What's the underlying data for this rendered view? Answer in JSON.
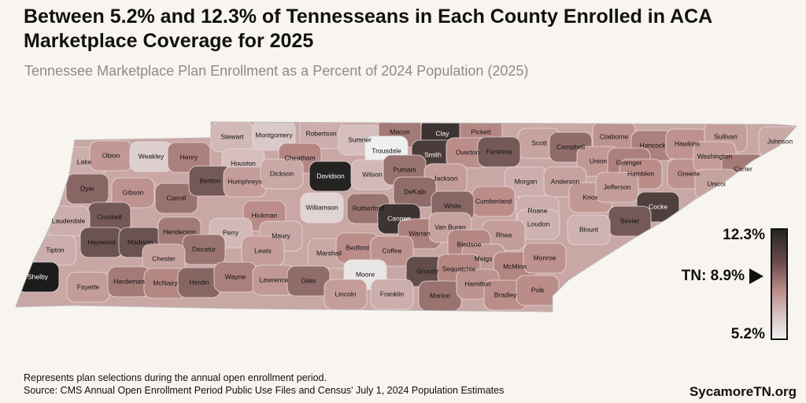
{
  "title": "Between 5.2% and 12.3% of Tennesseans in Each County Enrolled in ACA Marketplace Coverage for 2025",
  "subtitle": "Tennessee Marketplace Plan Enrollment as a Percent of 2024 Population (2025)",
  "legend": {
    "max_label": "12.3%",
    "min_label": "5.2%",
    "state_label": "TN: 8.9%",
    "min": 5.2,
    "max": 12.3,
    "state": 8.9,
    "colors": {
      "low": "#eef0f1",
      "mid": "#ba8a86",
      "high": "#1c1c1c"
    }
  },
  "counties": [
    {
      "name": "Stewart",
      "value": 7.2
    },
    {
      "name": "Montgomery",
      "value": 6.6
    },
    {
      "name": "Robertson",
      "value": 7.6
    },
    {
      "name": "Sumner",
      "value": 7.0
    },
    {
      "name": "Macon",
      "value": 9.4
    },
    {
      "name": "Clay",
      "value": 11.6
    },
    {
      "name": "Pickett",
      "value": 9.0
    },
    {
      "name": "Scott",
      "value": 8.0
    },
    {
      "name": "Campbell",
      "value": 9.8
    },
    {
      "name": "Claiborne",
      "value": 8.6
    },
    {
      "name": "Hancock",
      "value": 9.2
    },
    {
      "name": "Hawkins",
      "value": 8.6
    },
    {
      "name": "Sullivan",
      "value": 8.2
    },
    {
      "name": "Johnson",
      "value": 7.8
    },
    {
      "name": "Lake",
      "value": 7.6
    },
    {
      "name": "Obion",
      "value": 8.4
    },
    {
      "name": "Weakley",
      "value": 6.4
    },
    {
      "name": "Henry",
      "value": 9.2
    },
    {
      "name": "Houston",
      "value": 7.0
    },
    {
      "name": "Cheatham",
      "value": 9.0
    },
    {
      "name": "Davidson",
      "value": 12.1
    },
    {
      "name": "Trousdale",
      "value": 5.2
    },
    {
      "name": "Smith",
      "value": 11.3
    },
    {
      "name": "Overton",
      "value": 8.8
    },
    {
      "name": "Fentress",
      "value": 10.4
    },
    {
      "name": "Union",
      "value": 8.4
    },
    {
      "name": "Grainger",
      "value": 9.2
    },
    {
      "name": "Hamblen",
      "value": 8.8
    },
    {
      "name": "Greene",
      "value": 8.6
    },
    {
      "name": "Washington",
      "value": 8.2
    },
    {
      "name": "Carter",
      "value": 9.4
    },
    {
      "name": "Unicoi",
      "value": 8.0
    },
    {
      "name": "Dyer",
      "value": 10.0
    },
    {
      "name": "Gibson",
      "value": 8.6
    },
    {
      "name": "Carroll",
      "value": 9.6
    },
    {
      "name": "Benton",
      "value": 10.4
    },
    {
      "name": "Humphreys",
      "value": 8.2
    },
    {
      "name": "Dickson",
      "value": 7.8
    },
    {
      "name": "Wilson",
      "value": 7.2
    },
    {
      "name": "Putnam",
      "value": 9.6
    },
    {
      "name": "Jackson",
      "value": 8.2
    },
    {
      "name": "Morgan",
      "value": 7.6
    },
    {
      "name": "Anderson",
      "value": 8.0
    },
    {
      "name": "Knox",
      "value": 8.4
    },
    {
      "name": "Jefferson",
      "value": 8.2
    },
    {
      "name": "Cocke",
      "value": 11.2
    },
    {
      "name": "Crockett",
      "value": 10.4
    },
    {
      "name": "Williamson",
      "value": 6.2
    },
    {
      "name": "DeKalb",
      "value": 9.8
    },
    {
      "name": "Cumberland",
      "value": 8.8
    },
    {
      "name": "Roane",
      "value": 7.6
    },
    {
      "name": "Sevier",
      "value": 10.4
    },
    {
      "name": "Lauderdale",
      "value": 7.6
    },
    {
      "name": "Hickman",
      "value": 8.8
    },
    {
      "name": "Rutherford",
      "value": 9.6
    },
    {
      "name": "Cannon",
      "value": 11.6
    },
    {
      "name": "White",
      "value": 10.0
    },
    {
      "name": "Loudon",
      "value": 7.4
    },
    {
      "name": "Blount",
      "value": 7.4
    },
    {
      "name": "Haywood",
      "value": 10.6
    },
    {
      "name": "Madison",
      "value": 10.6
    },
    {
      "name": "Henderson",
      "value": 9.4
    },
    {
      "name": "Perry",
      "value": 7.2
    },
    {
      "name": "Maury",
      "value": 7.8
    },
    {
      "name": "Warren",
      "value": 9.2
    },
    {
      "name": "Van Buren",
      "value": 8.0
    },
    {
      "name": "Rhea",
      "value": 8.2
    },
    {
      "name": "Bledsoe",
      "value": 9.0
    },
    {
      "name": "Tipton",
      "value": 7.6
    },
    {
      "name": "Decatur",
      "value": 9.6
    },
    {
      "name": "Lewis",
      "value": 8.2
    },
    {
      "name": "Marshall",
      "value": 7.8
    },
    {
      "name": "Bedford",
      "value": 8.8
    },
    {
      "name": "Coffee",
      "value": 8.6
    },
    {
      "name": "Chester",
      "value": 8.0
    },
    {
      "name": "Meigs",
      "value": 8.4
    },
    {
      "name": "McMinn",
      "value": 9.0
    },
    {
      "name": "Monroe",
      "value": 8.6
    },
    {
      "name": "Grundy",
      "value": 10.8
    },
    {
      "name": "Sequatchie",
      "value": 9.0
    },
    {
      "name": "Shelby",
      "value": 12.3
    },
    {
      "name": "Fayette",
      "value": 8.2
    },
    {
      "name": "Hardeman",
      "value": 9.4
    },
    {
      "name": "McNairy",
      "value": 9.0
    },
    {
      "name": "Hardin",
      "value": 10.0
    },
    {
      "name": "Wayne",
      "value": 9.2
    },
    {
      "name": "Lawrence",
      "value": 8.4
    },
    {
      "name": "Giles",
      "value": 9.8
    },
    {
      "name": "Moore",
      "value": 5.6
    },
    {
      "name": "Lincoln",
      "value": 8.2
    },
    {
      "name": "Franklin",
      "value": 7.6
    },
    {
      "name": "Marion",
      "value": 9.6
    },
    {
      "name": "Hamilton",
      "value": 8.6
    },
    {
      "name": "Bradley",
      "value": 8.8
    },
    {
      "name": "Polk",
      "value": 8.8
    }
  ],
  "footer": {
    "note": "Represents plan selections during the annual open enrollment period.",
    "source": "Source: CMS Annual Open Enrollment Period Public Use Files and Census' July 1, 2024 Population Estimates",
    "brand": "SycamoreTN.org"
  }
}
